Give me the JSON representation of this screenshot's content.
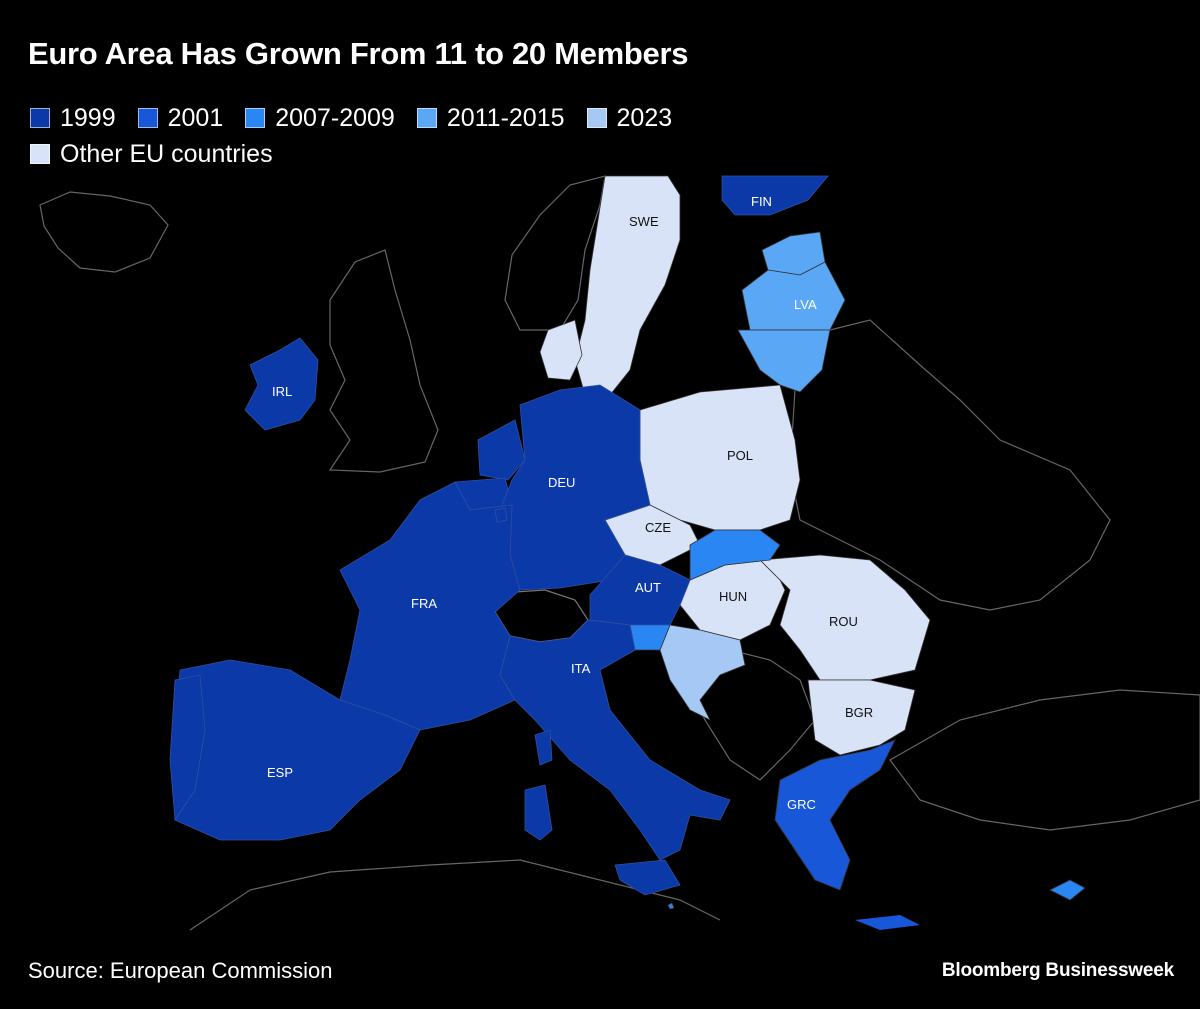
{
  "title": "Euro Area Has Grown From 11 to 20 Members",
  "legend": [
    {
      "label": "1999",
      "color": "#0b3aa8"
    },
    {
      "label": "2001",
      "color": "#1957d9"
    },
    {
      "label": "2007-2009",
      "color": "#2a86f3"
    },
    {
      "label": "2011-2015",
      "color": "#5aa7f5"
    },
    {
      "label": "2023",
      "color": "#a6c8f5"
    },
    {
      "label": "Other EU countries",
      "color": "#d9e3f7"
    }
  ],
  "countries": {
    "swe": "SWE",
    "fin": "FIN",
    "lva": "LVA",
    "irl": "IRL",
    "pol": "POL",
    "deu": "DEU",
    "cze": "CZE",
    "aut": "AUT",
    "hun": "HUN",
    "fra": "FRA",
    "rou": "ROU",
    "ita": "ITA",
    "bgr": "BGR",
    "esp": "ESP",
    "grc": "GRC"
  },
  "source": "Source: European Commission",
  "brand": "Bloomberg Businessweek"
}
